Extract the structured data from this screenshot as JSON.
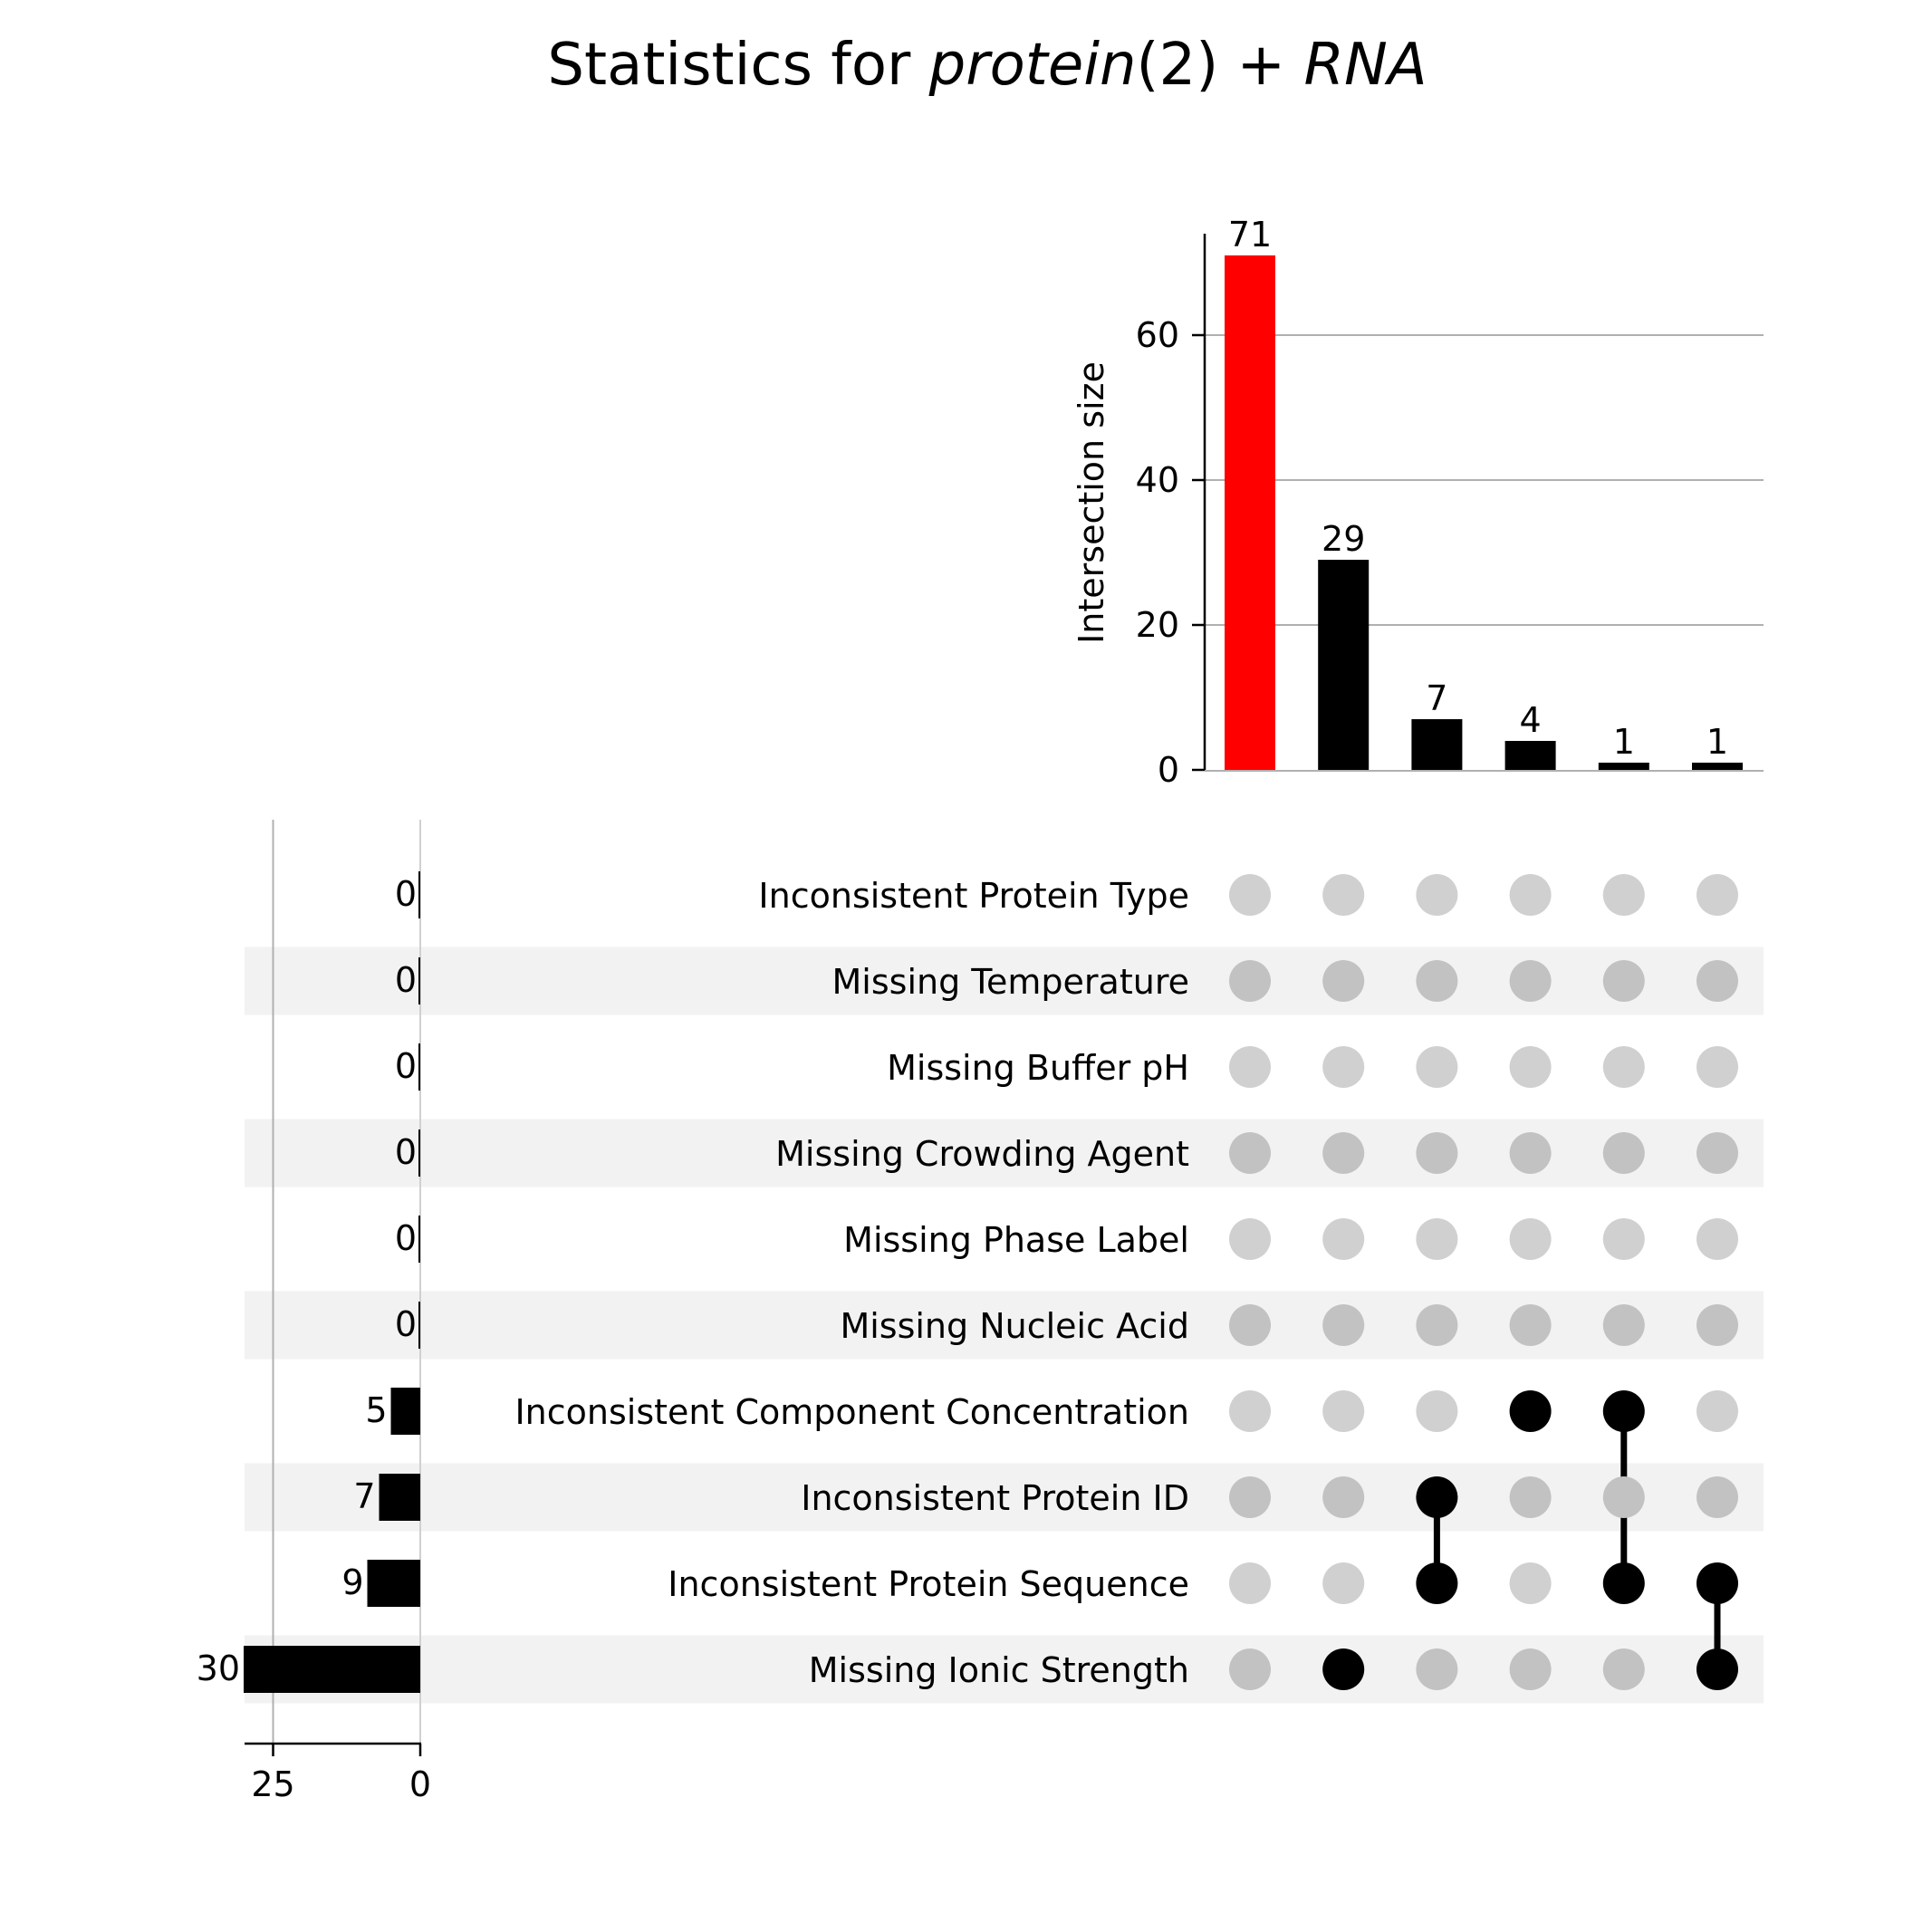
{
  "chart_data": {
    "type": "bar",
    "subtype": "upset",
    "title_prefix": "Statistics for ",
    "title_italic_1": "protein",
    "title_middle": "(2) + ",
    "title_italic_2": "RNA",
    "intersection_axis": {
      "ylabel": "Intersection size",
      "ylim": [
        0,
        75
      ],
      "ticks": [
        0,
        20,
        40,
        60
      ],
      "grid": true
    },
    "set_size_axis": {
      "xlim": [
        30,
        0
      ],
      "ticks": [
        25,
        0
      ],
      "grid": true
    },
    "sets": [
      {
        "name": "Inconsistent Protein Type",
        "size": 0
      },
      {
        "name": "Missing Temperature",
        "size": 0
      },
      {
        "name": "Missing Buffer pH",
        "size": 0
      },
      {
        "name": "Missing Crowding Agent",
        "size": 0
      },
      {
        "name": "Missing Phase Label",
        "size": 0
      },
      {
        "name": "Missing Nucleic Acid",
        "size": 0
      },
      {
        "name": "Inconsistent Component Concentration",
        "size": 5
      },
      {
        "name": "Inconsistent Protein ID",
        "size": 7
      },
      {
        "name": "Inconsistent Protein Sequence",
        "size": 9
      },
      {
        "name": "Missing Ionic Strength",
        "size": 30
      }
    ],
    "intersections": [
      {
        "size": 71,
        "members": [],
        "color": "#ff0000"
      },
      {
        "size": 29,
        "members": [
          "Missing Ionic Strength"
        ],
        "color": "#000000"
      },
      {
        "size": 7,
        "members": [
          "Inconsistent Protein ID",
          "Inconsistent Protein Sequence"
        ],
        "color": "#000000"
      },
      {
        "size": 4,
        "members": [
          "Inconsistent Component Concentration"
        ],
        "color": "#000000"
      },
      {
        "size": 1,
        "members": [
          "Inconsistent Component Concentration",
          "Inconsistent Protein Sequence"
        ],
        "color": "#000000"
      },
      {
        "size": 1,
        "members": [
          "Inconsistent Protein Sequence",
          "Missing Ionic Strength"
        ],
        "color": "#000000"
      }
    ],
    "colors": {
      "highlight": "#ff0000",
      "bar": "#000000",
      "dot_active": "#000000",
      "dot_inactive_light": "#d0d0d0",
      "dot_inactive_dark": "#c2c2c2",
      "stripe": "#f2f2f2",
      "grid": "#b0b0b0"
    }
  }
}
